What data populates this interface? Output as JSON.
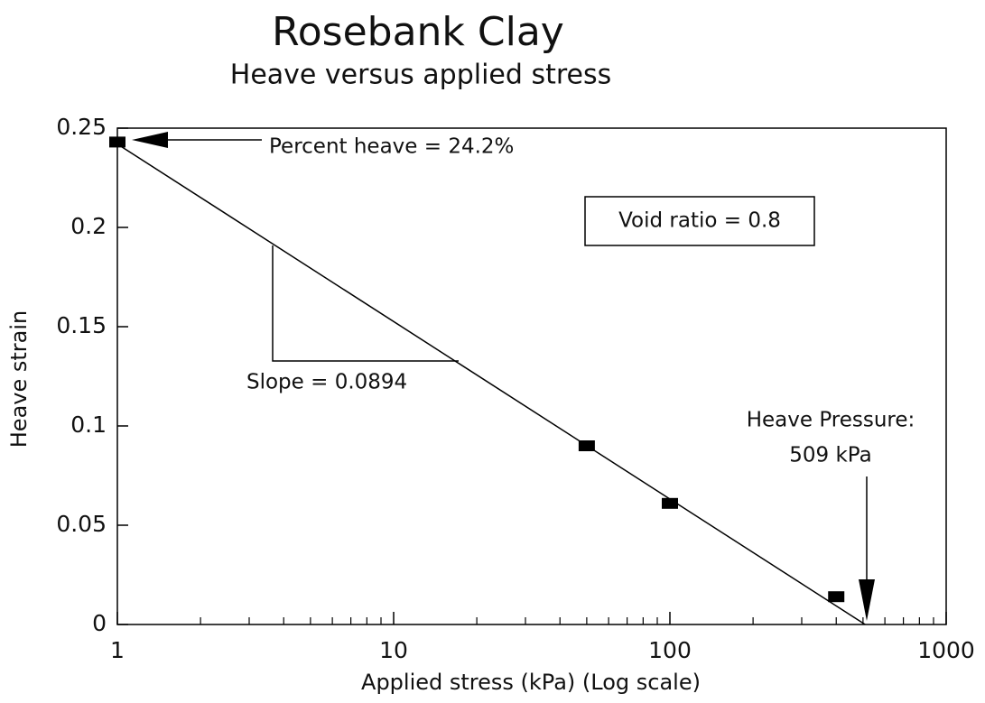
{
  "chart_data": {
    "type": "scatter",
    "title": "Rosebank Clay",
    "subtitle": "Heave versus applied stress",
    "x_label": "Applied stress (kPa) (Log scale)",
    "y_label": "Heave strain",
    "x_log_scale": true,
    "xlim": [
      1,
      1000
    ],
    "xticks": [
      1,
      10,
      100,
      1000
    ],
    "xminorticks": [
      2,
      3,
      4,
      5,
      6,
      7,
      8,
      9,
      20,
      30,
      40,
      50,
      60,
      70,
      80,
      90,
      200,
      300,
      400,
      500,
      600,
      700,
      800,
      900
    ],
    "ylim": [
      0,
      0.25
    ],
    "yticks": [
      0,
      0.05,
      0.1,
      0.15,
      0.2,
      0.25
    ],
    "points": {
      "x": [
        1,
        50,
        100,
        400
      ],
      "values": [
        0.243,
        0.09,
        0.061,
        0.014
      ],
      "color": "#000000"
    },
    "fit_line": {
      "x": [
        1,
        509
      ],
      "values": [
        0.242,
        0
      ],
      "color": "#000000"
    },
    "annotations": {
      "percent_heave": "Percent heave = 24.2%",
      "void_ratio": "Void ratio = 0.8",
      "slope": "Slope = 0.0894",
      "heave_pressure": "Heave Pressure:",
      "heave_pressure_value": "509 kPa"
    }
  }
}
